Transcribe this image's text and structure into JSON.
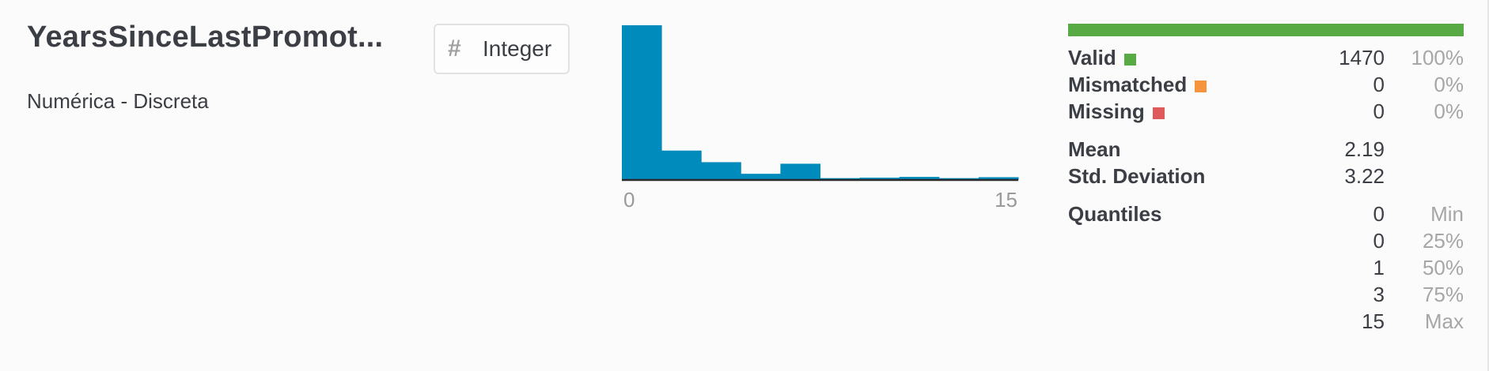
{
  "column": {
    "name": "YearsSinceLastPromot...",
    "kind": "Numérica - Discreta",
    "type_icon": "hash-icon",
    "type_label": "Integer"
  },
  "chart_data": {
    "type": "bar",
    "x_range": [
      0,
      15
    ],
    "tick_labels": [
      "0",
      "15"
    ],
    "values": [
      1,
      0.19,
      0.115,
      0.04,
      0.105,
      0.012,
      0.015,
      0.02,
      0.012,
      0.018
    ],
    "color": "#008bbd"
  },
  "stats": {
    "bar_color": "#58ab44",
    "valid": {
      "label": "Valid",
      "value": "1470",
      "pct": "100%",
      "color": "#58ab44"
    },
    "mismatched": {
      "label": "Mismatched",
      "value": "0",
      "pct": "0%",
      "color": "#f6943e"
    },
    "missing": {
      "label": "Missing",
      "value": "0",
      "pct": "0%",
      "color": "#df5a5a"
    },
    "mean": {
      "label": "Mean",
      "value": "2.19"
    },
    "std": {
      "label": "Std. Deviation",
      "value": "3.22"
    },
    "quantiles": {
      "label": "Quantiles",
      "rows": [
        {
          "value": "0",
          "name": "Min"
        },
        {
          "value": "0",
          "name": "25%"
        },
        {
          "value": "1",
          "name": "50%"
        },
        {
          "value": "3",
          "name": "75%"
        },
        {
          "value": "15",
          "name": "Max"
        }
      ]
    }
  }
}
